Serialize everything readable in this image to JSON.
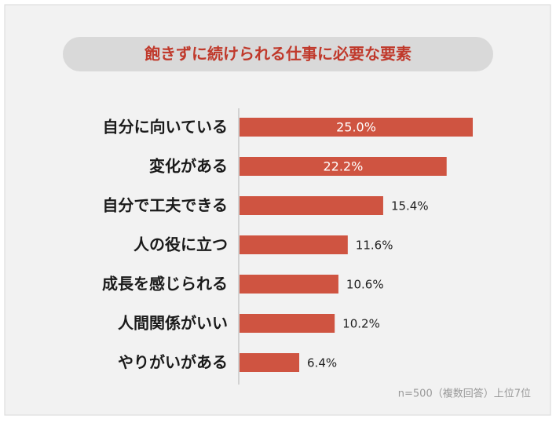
{
  "chart_data": {
    "type": "bar",
    "orientation": "horizontal",
    "title": "飽きずに続けられる仕事に必要な要素",
    "categories": [
      "自分に向いている",
      "変化がある",
      "自分で工夫できる",
      "人の役に立つ",
      "成長を感じられる",
      "人間関係がいい",
      "やりがいがある"
    ],
    "values": [
      25.0,
      22.2,
      15.4,
      11.6,
      10.6,
      10.2,
      6.4
    ],
    "value_labels": [
      "25.0%",
      "22.2%",
      "15.4%",
      "11.6%",
      "10.6%",
      "10.2%",
      "6.4%"
    ],
    "color": "#cf5441",
    "note": "n=500（複数回答）上位7位"
  }
}
